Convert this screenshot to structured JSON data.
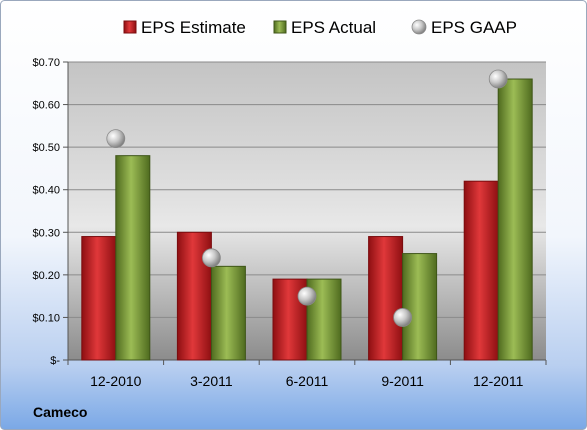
{
  "company": "Cameco",
  "chart_data": {
    "type": "bar",
    "categories": [
      "12-2010",
      "3-2011",
      "6-2011",
      "9-2011",
      "12-2011"
    ],
    "series": [
      {
        "name": "EPS Estimate",
        "kind": "bar",
        "color": "#c0191c",
        "values": [
          0.29,
          0.3,
          0.19,
          0.29,
          0.42
        ]
      },
      {
        "name": "EPS Actual",
        "kind": "bar",
        "color": "#7a9a3a",
        "values": [
          0.48,
          0.22,
          0.19,
          0.25,
          0.66
        ]
      },
      {
        "name": "EPS GAAP",
        "kind": "scatter",
        "color": "#a6a6a6",
        "values": [
          0.52,
          0.24,
          0.15,
          0.1,
          0.66
        ]
      }
    ],
    "ylim": [
      0,
      0.7
    ],
    "yticks": [
      0,
      0.1,
      0.2,
      0.3,
      0.4,
      0.5,
      0.6,
      0.7
    ],
    "ytick_labels": [
      "$-",
      "$0.10",
      "$0.20",
      "$0.30",
      "$0.40",
      "$0.50",
      "$0.60",
      "$0.70"
    ],
    "grid": true,
    "legend_position": "top"
  }
}
